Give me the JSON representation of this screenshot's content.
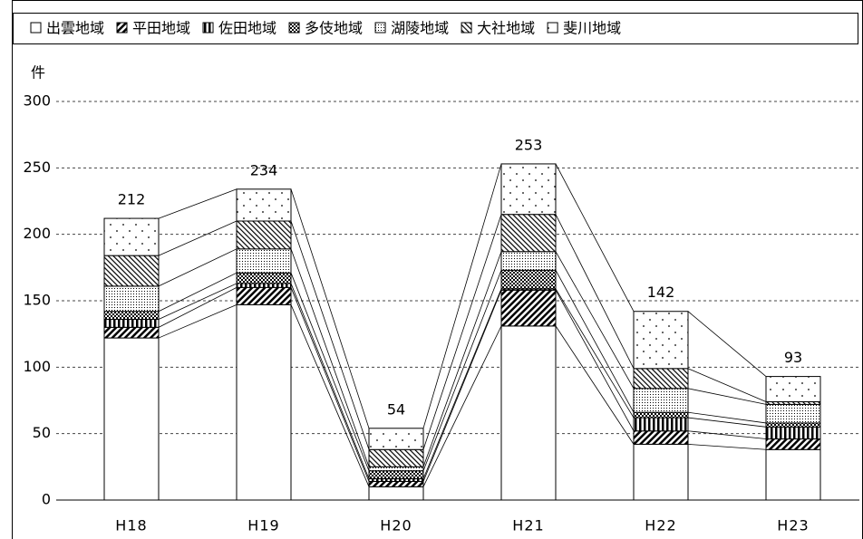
{
  "chart_data": {
    "type": "stacked-bar",
    "y_label": "件",
    "categories": [
      "H18",
      "H19",
      "H20",
      "H21",
      "H22",
      "H23"
    ],
    "series": [
      {
        "name": "出雲地域",
        "color": "#000000",
        "pattern": "blank",
        "values": [
          122,
          147,
          10,
          131,
          42,
          38
        ]
      },
      {
        "name": "平田地域",
        "color": "#000000",
        "pattern": "diagonal",
        "values": [
          8,
          13,
          4,
          27,
          10,
          8
        ]
      },
      {
        "name": "佐田地域",
        "color": "#000000",
        "pattern": "vertical",
        "values": [
          6,
          3,
          2,
          1,
          10,
          9
        ]
      },
      {
        "name": "多伎地域",
        "color": "#000000",
        "pattern": "checker",
        "values": [
          6,
          8,
          6,
          14,
          4,
          3
        ]
      },
      {
        "name": "湖陵地域",
        "color": "#000000",
        "pattern": "dense-dots",
        "values": [
          19,
          18,
          3,
          14,
          18,
          14
        ]
      },
      {
        "name": "大社地域",
        "color": "#000000",
        "pattern": "back-diagonal",
        "values": [
          23,
          21,
          13,
          28,
          15,
          2
        ]
      },
      {
        "name": "斐川地域",
        "color": "#000000",
        "pattern": "sparse-dots",
        "values": [
          28,
          24,
          16,
          38,
          43,
          19
        ]
      }
    ],
    "totals": [
      212,
      234,
      54,
      253,
      142,
      93
    ],
    "ylim": [
      0,
      300
    ],
    "yticks": [
      0,
      50,
      100,
      150,
      200,
      250,
      300
    ],
    "grid": true,
    "legend": "top"
  }
}
